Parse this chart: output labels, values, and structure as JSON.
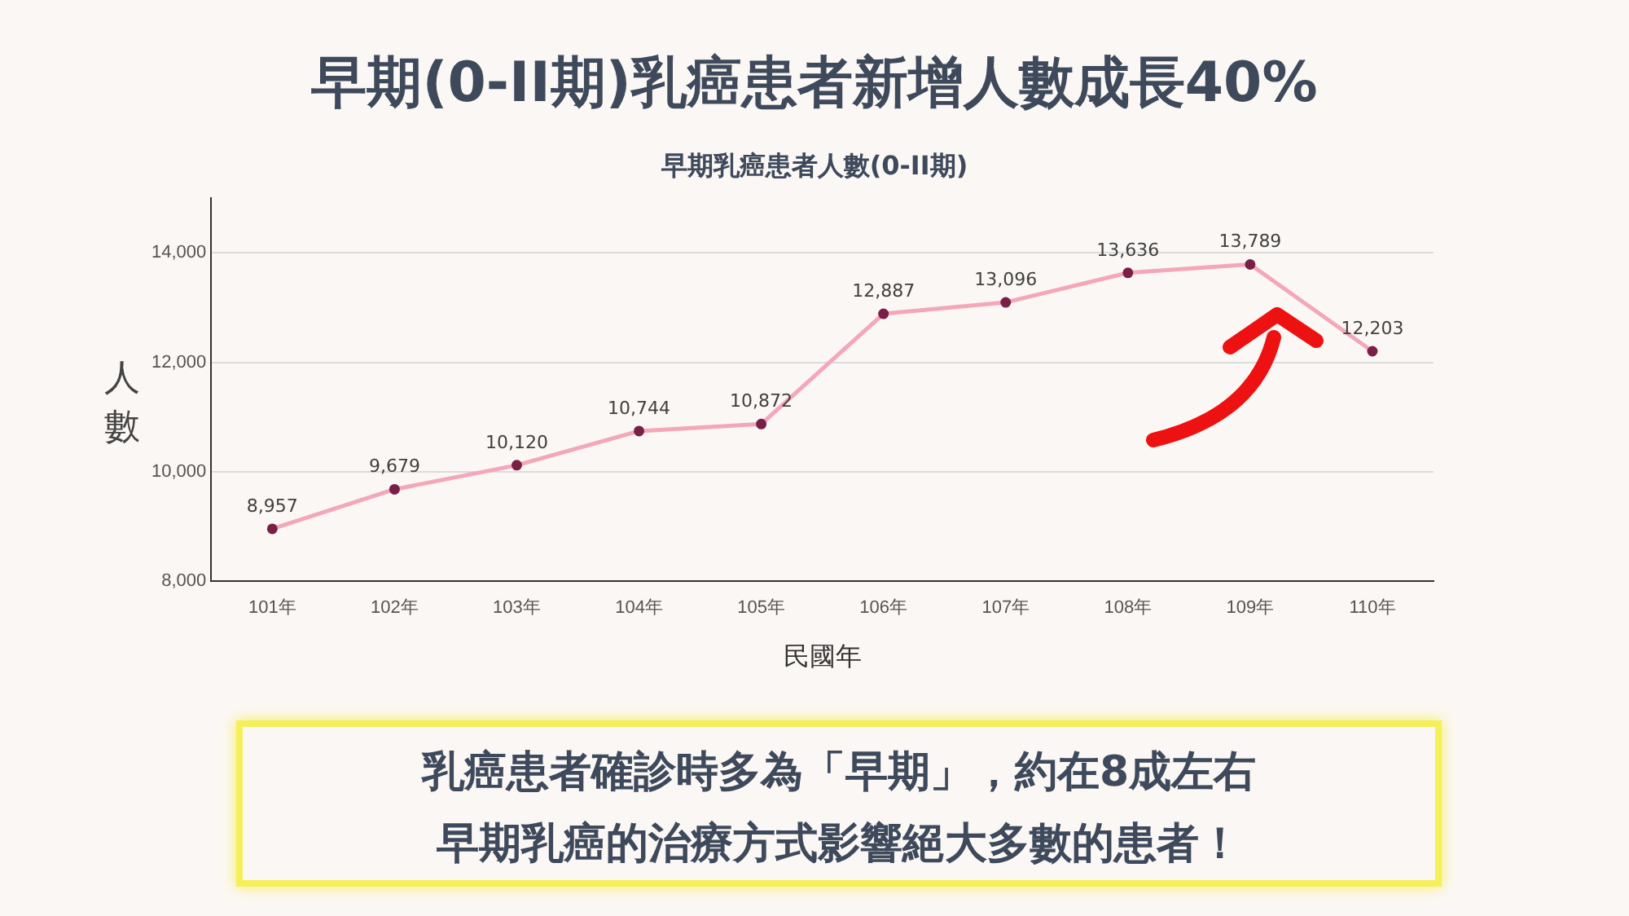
{
  "chart_data": {
    "type": "line",
    "title": "早期(0-II期)乳癌患者新增人數成長40%",
    "subtitle": "早期乳癌患者人數(0-II期)",
    "xlabel": "民國年",
    "ylabel": "人數",
    "categories": [
      "101年",
      "102年",
      "103年",
      "104年",
      "105年",
      "106年",
      "107年",
      "108年",
      "109年",
      "110年"
    ],
    "series": [
      {
        "color": "#f4a7b9",
        "values": [
          8957,
          9679,
          10120,
          10744,
          10872,
          12887,
          13096,
          13636,
          13789,
          12203
        ],
        "value_labels": [
          "8,957",
          "9,679",
          "10,120",
          "10,744",
          "10,872",
          "12,887",
          "13,096",
          "13,636",
          "13,789",
          "12,203"
        ]
      }
    ],
    "ylim": [
      8000,
      15000
    ],
    "yticks": [
      {
        "value": 8000,
        "label": "8,000"
      },
      {
        "value": 10000,
        "label": "10,000"
      },
      {
        "value": 12000,
        "label": "12,000"
      },
      {
        "value": 14000,
        "label": "14,000"
      }
    ],
    "grid": "y",
    "marker": "circle",
    "line_style": "solid",
    "legend": false,
    "annotations": [
      "乳癌患者確診時多為「早期」，約在8成左右",
      "早期乳癌的治療方式影響絕大多數的患者！"
    ]
  }
}
